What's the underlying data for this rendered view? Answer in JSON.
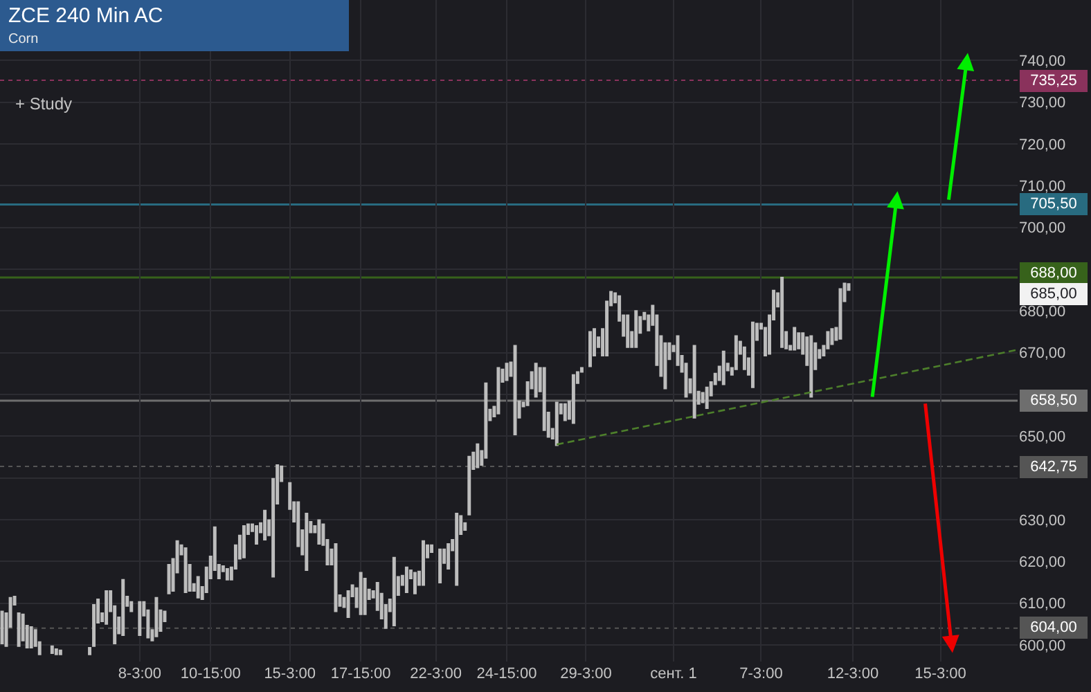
{
  "chart_data": {
    "type": "candlestick",
    "title": "ZCE 240 Min AC",
    "subtitle": "Corn",
    "categories": [
      null,
      null,
      null,
      null,
      null,
      null,
      null,
      null,
      null,
      null,
      null,
      null,
      null,
      null,
      null,
      null,
      null,
      null,
      null,
      null,
      null,
      null,
      null,
      null,
      null,
      null,
      null,
      null,
      null,
      null,
      null,
      null,
      null,
      "8-3:00",
      null,
      null,
      null,
      null,
      null,
      null,
      null,
      null,
      null,
      null,
      null,
      null,
      null,
      null,
      null,
      null,
      "10-15:00",
      null,
      null,
      null,
      null,
      null,
      null,
      null,
      null,
      null,
      null,
      null,
      null,
      null,
      null,
      null,
      null,
      null,
      null,
      "15-3:00",
      null,
      null,
      null,
      null,
      null,
      null,
      null,
      null,
      null,
      null,
      null,
      null,
      null,
      null,
      null,
      null,
      "17-15:00",
      null,
      null,
      null,
      null,
      null,
      null,
      null,
      null,
      null,
      null,
      null,
      null,
      null,
      null,
      null,
      null,
      null,
      "22-3:00",
      null,
      null,
      null,
      null,
      null,
      null,
      null,
      null,
      null,
      null,
      null,
      null,
      null,
      null,
      null,
      null,
      "24-15:00",
      null,
      null,
      null,
      null,
      null,
      null,
      null,
      null,
      null,
      null,
      null,
      null,
      null,
      null,
      null,
      null,
      null,
      null,
      "29-3:00",
      null,
      null,
      null,
      null,
      null,
      null,
      null,
      null,
      null,
      null,
      null,
      null,
      null,
      null,
      null,
      null,
      null,
      null,
      null,
      null,
      "сент. 1",
      null,
      null,
      null,
      null,
      null,
      null,
      null,
      null,
      null,
      null,
      null,
      null,
      null,
      null,
      null,
      null,
      null,
      null,
      null,
      null,
      "7-3:00",
      null,
      null,
      null,
      null,
      null,
      null,
      null,
      null,
      null,
      null,
      null,
      null,
      null,
      null,
      null,
      null,
      null,
      null,
      null,
      null,
      null,
      "12-3:00",
      null,
      null,
      null,
      null,
      null,
      null,
      null,
      null,
      null,
      null,
      null,
      null,
      null,
      null,
      null,
      null,
      null,
      null,
      null,
      null,
      "15-3:00",
      null,
      null,
      null,
      null,
      null,
      null,
      null,
      null,
      null,
      null,
      null,
      null,
      null,
      null,
      null,
      null,
      null,
      null
    ],
    "ohlc": [
      [
        608.0,
        608.0,
        600.3,
        600.3
      ],
      [
        607.6,
        607.6,
        599.7,
        599.7
      ],
      [
        611.3,
        611.3,
        604.3,
        604.3
      ],
      [
        611.6,
        611.6,
        609.6,
        609.6
      ],
      [
        607.6,
        607.6,
        599.7,
        599.7
      ],
      [
        607.3,
        607.3,
        601.0,
        601.0
      ],
      [
        604.6,
        604.6,
        599.3,
        599.3
      ],
      [
        604.3,
        604.3,
        599.3,
        599.3
      ],
      [
        603.6,
        603.6,
        599.7,
        599.7
      ],
      [
        600.7,
        600.7,
        597.7,
        597.7
      ],
      null,
      null,
      [
        599.7,
        599.7,
        598.0,
        598.0
      ],
      [
        599.0,
        599.0,
        597.7,
        597.7
      ],
      [
        598.7,
        598.7,
        597.7,
        597.7
      ],
      null,
      null,
      null,
      null,
      null,
      null,
      [
        599.3,
        599.3,
        597.7,
        597.7
      ],
      [
        609.6,
        609.6,
        599.7,
        599.7
      ],
      [
        610.9,
        610.9,
        605.3,
        605.3
      ],
      [
        605.6,
        607.6,
        605.6,
        607.6
      ],
      [
        612.9,
        612.9,
        605.0,
        605.0
      ],
      [
        612.9,
        612.9,
        608.0,
        608.0
      ],
      [
        609.3,
        609.3,
        600.3,
        600.3
      ],
      [
        606.6,
        606.6,
        602.7,
        602.7
      ],
      [
        615.6,
        615.6,
        602.3,
        602.3
      ],
      [
        611.6,
        611.6,
        609.3,
        609.3
      ],
      [
        610.3,
        610.3,
        608.0,
        608.0
      ],
      null,
      [
        610.3,
        610.3,
        602.3,
        602.3
      ],
      [
        610.3,
        610.3,
        607.0,
        607.0
      ],
      [
        608.3,
        608.3,
        601.7,
        601.7
      ],
      [
        601.0,
        603.6,
        601.0,
        603.6
      ],
      [
        611.3,
        611.3,
        602.0,
        602.0
      ],
      [
        608.3,
        608.3,
        603.3,
        603.3
      ],
      [
        605.6,
        608.0,
        605.6,
        608.0
      ],
      [
        619.2,
        619.2,
        612.3,
        612.3
      ],
      [
        620.6,
        620.6,
        612.9,
        612.9
      ],
      [
        624.9,
        624.9,
        617.3,
        617.3
      ],
      [
        623.9,
        623.9,
        621.6,
        621.6
      ],
      [
        623.2,
        623.2,
        612.6,
        612.6
      ],
      [
        619.2,
        619.2,
        612.9,
        612.9
      ],
      [
        614.6,
        614.6,
        612.9,
        612.9
      ],
      [
        616.3,
        616.3,
        611.3,
        611.3
      ],
      [
        613.9,
        613.9,
        610.9,
        610.9
      ],
      [
        618.6,
        618.6,
        612.6,
        612.6
      ],
      [
        621.2,
        621.2,
        615.9,
        615.9
      ],
      [
        628.2,
        628.2,
        617.9,
        617.9
      ],
      [
        615.9,
        619.2,
        615.9,
        619.2
      ],
      [
        618.9,
        618.9,
        617.6,
        617.6
      ],
      [
        618.2,
        618.2,
        615.6,
        615.6
      ],
      [
        618.6,
        618.6,
        615.6,
        615.6
      ],
      [
        623.9,
        623.9,
        618.2,
        618.2
      ],
      [
        626.2,
        626.2,
        620.6,
        620.6
      ],
      [
        628.5,
        628.5,
        620.9,
        620.9
      ],
      [
        628.9,
        628.9,
        626.5,
        626.5
      ],
      [
        628.9,
        628.9,
        627.2,
        627.2
      ],
      [
        628.5,
        628.5,
        624.2,
        624.2
      ],
      [
        629.2,
        629.2,
        626.9,
        626.9
      ],
      [
        632.2,
        632.2,
        625.2,
        625.2
      ],
      [
        626.2,
        629.9,
        626.2,
        629.9
      ],
      [
        639.8,
        639.8,
        616.3,
        616.3
      ],
      [
        643.1,
        643.1,
        633.8,
        633.8
      ],
      [
        642.8,
        642.8,
        639.2,
        639.2
      ],
      null,
      [
        638.8,
        638.8,
        632.5,
        632.5
      ],
      [
        634.2,
        634.2,
        629.5,
        629.5
      ],
      [
        634.2,
        634.2,
        623.6,
        623.6
      ],
      [
        627.5,
        627.5,
        621.6,
        621.6
      ],
      [
        631.5,
        631.5,
        617.9,
        617.9
      ],
      [
        629.5,
        629.5,
        626.9,
        626.9
      ],
      [
        628.5,
        628.5,
        626.9,
        626.9
      ],
      [
        629.9,
        629.9,
        624.2,
        624.2
      ],
      [
        628.9,
        628.9,
        623.9,
        623.9
      ],
      [
        625.2,
        625.2,
        619.2,
        619.2
      ],
      [
        622.9,
        622.9,
        619.2,
        619.2
      ],
      [
        624.2,
        624.2,
        608.0,
        608.0
      ],
      [
        611.9,
        611.9,
        609.3,
        609.3
      ],
      [
        611.3,
        611.3,
        609.0,
        609.0
      ],
      [
        612.9,
        612.9,
        606.6,
        606.6
      ],
      [
        614.3,
        614.3,
        611.6,
        611.6
      ],
      [
        609.0,
        613.6,
        609.0,
        613.6
      ],
      [
        617.3,
        617.3,
        607.3,
        607.3
      ],
      [
        615.9,
        615.9,
        607.3,
        607.3
      ],
      [
        613.3,
        613.3,
        610.9,
        610.9
      ],
      [
        611.3,
        612.9,
        611.3,
        612.9
      ],
      [
        614.9,
        614.9,
        608.3,
        608.3
      ],
      [
        612.3,
        612.3,
        606.3,
        606.3
      ],
      [
        609.6,
        609.6,
        604.0,
        604.0
      ],
      [
        608.0,
        610.9,
        608.0,
        610.9
      ],
      [
        620.9,
        620.9,
        604.6,
        604.6
      ],
      [
        616.3,
        616.3,
        611.9,
        611.9
      ],
      [
        616.6,
        616.6,
        614.3,
        614.3
      ],
      [
        618.6,
        618.6,
        612.6,
        612.6
      ],
      [
        617.9,
        617.9,
        615.9,
        615.9
      ],
      [
        617.3,
        617.3,
        612.3,
        612.3
      ],
      [
        617.6,
        617.6,
        614.3,
        614.3
      ],
      [
        624.9,
        624.9,
        614.3,
        614.3
      ],
      [
        623.9,
        623.9,
        620.9,
        620.9
      ],
      [
        622.2,
        623.9,
        622.2,
        623.9
      ],
      null,
      [
        622.9,
        622.9,
        614.9,
        614.9
      ],
      [
        622.9,
        622.9,
        619.6,
        619.6
      ],
      [
        624.2,
        624.2,
        618.2,
        618.2
      ],
      [
        625.2,
        625.2,
        622.6,
        622.6
      ],
      [
        631.5,
        631.5,
        614.3,
        614.3
      ],
      [
        630.9,
        630.9,
        626.5,
        626.5
      ],
      [
        629.2,
        629.2,
        627.5,
        627.5
      ],
      [
        645.1,
        645.1,
        631.2,
        631.2
      ],
      [
        646.1,
        646.1,
        642.1,
        642.1
      ],
      [
        648.1,
        648.1,
        642.5,
        642.5
      ],
      [
        646.5,
        646.5,
        643.1,
        643.1
      ],
      [
        662.7,
        662.7,
        644.8,
        644.8
      ],
      [
        656.4,
        656.4,
        653.8,
        653.8
      ],
      [
        657.1,
        657.1,
        654.7,
        654.7
      ],
      [
        666.4,
        666.4,
        655.4,
        655.4
      ],
      [
        666.0,
        666.0,
        663.0,
        663.0
      ],
      [
        667.4,
        667.4,
        663.4,
        663.4
      ],
      [
        667.7,
        667.7,
        664.4,
        664.4
      ],
      [
        671.7,
        671.7,
        650.4,
        650.4
      ],
      [
        658.4,
        658.4,
        654.4,
        654.4
      ],
      [
        658.1,
        658.1,
        657.1,
        657.1
      ],
      [
        663.0,
        663.0,
        657.4,
        657.4
      ],
      [
        665.4,
        665.4,
        661.4,
        661.4
      ],
      [
        667.4,
        667.4,
        659.4,
        659.4
      ],
      [
        666.4,
        666.4,
        660.7,
        660.7
      ],
      [
        666.4,
        666.4,
        651.4,
        651.4
      ],
      [
        655.7,
        655.7,
        649.8,
        649.8
      ],
      [
        651.8,
        651.8,
        649.4,
        649.4
      ],
      [
        658.1,
        658.1,
        647.8,
        647.8
      ],
      [
        655.4,
        657.7,
        655.4,
        657.7
      ],
      [
        657.7,
        657.7,
        653.8,
        653.8
      ],
      [
        658.4,
        658.4,
        654.1,
        654.1
      ],
      [
        664.7,
        664.7,
        653.1,
        653.1
      ],
      [
        665.4,
        665.4,
        662.7,
        662.7
      ],
      [
        666.4,
        666.4,
        665.4,
        665.4
      ],
      null,
      [
        675.0,
        675.0,
        666.7,
        666.7
      ],
      [
        675.7,
        675.7,
        669.3,
        669.3
      ],
      [
        673.7,
        673.7,
        671.3,
        671.3
      ],
      [
        675.7,
        675.7,
        669.3,
        669.3
      ],
      [
        682.3,
        682.3,
        669.3,
        669.3
      ],
      [
        684.6,
        684.6,
        681.3,
        681.3
      ],
      [
        684.3,
        684.3,
        682.0,
        682.0
      ],
      [
        683.6,
        683.6,
        677.6,
        677.6
      ],
      [
        679.0,
        679.0,
        674.0,
        674.0
      ],
      [
        679.0,
        679.0,
        671.3,
        671.3
      ],
      [
        671.3,
        675.0,
        671.3,
        675.0
      ],
      [
        680.0,
        680.0,
        671.3,
        671.3
      ],
      [
        678.6,
        678.6,
        674.7,
        674.7
      ],
      [
        679.6,
        679.6,
        678.0,
        678.0
      ],
      [
        679.0,
        679.0,
        675.3,
        675.3
      ],
      [
        681.3,
        681.3,
        676.6,
        676.6
      ],
      [
        679.0,
        679.0,
        667.0,
        667.0
      ],
      [
        674.0,
        674.0,
        664.4,
        664.4
      ],
      [
        672.3,
        672.3,
        661.4,
        661.4
      ],
      [
        672.3,
        672.3,
        668.4,
        668.4
      ],
      [
        671.7,
        671.7,
        670.3,
        670.3
      ],
      [
        674.0,
        674.0,
        667.0,
        667.0
      ],
      [
        669.3,
        669.3,
        665.4,
        665.4
      ],
      [
        667.4,
        667.4,
        659.4,
        659.4
      ],
      [
        663.7,
        663.7,
        660.4,
        660.4
      ],
      [
        671.7,
        671.7,
        654.4,
        654.4
      ],
      [
        660.7,
        660.7,
        657.7,
        657.7
      ],
      [
        660.4,
        660.4,
        658.1,
        658.1
      ],
      [
        661.7,
        661.7,
        656.7,
        656.7
      ],
      [
        663.0,
        663.0,
        659.7,
        659.7
      ],
      [
        665.0,
        665.0,
        662.4,
        662.4
      ],
      [
        666.7,
        666.7,
        663.4,
        663.4
      ],
      [
        662.4,
        670.3,
        662.4,
        670.3
      ],
      [
        667.4,
        667.4,
        665.7,
        665.7
      ],
      [
        666.4,
        666.4,
        664.7,
        664.7
      ],
      [
        674.0,
        674.0,
        666.0,
        666.0
      ],
      [
        672.7,
        672.7,
        669.7,
        669.7
      ],
      [
        671.3,
        671.3,
        666.0,
        666.0
      ],
      [
        668.7,
        668.7,
        664.7,
        664.7
      ],
      [
        677.3,
        677.3,
        661.7,
        661.7
      ],
      [
        677.0,
        677.0,
        673.0,
        673.0
      ],
      [
        677.0,
        677.0,
        675.7,
        675.7
      ],
      [
        676.0,
        676.0,
        669.3,
        669.3
      ],
      [
        679.0,
        679.0,
        669.7,
        669.7
      ],
      [
        684.9,
        684.9,
        677.9,
        677.9
      ],
      [
        684.3,
        684.3,
        681.0,
        681.0
      ],
      [
        688.0,
        688.0,
        671.3,
        671.3
      ],
      [
        675.0,
        675.0,
        671.0,
        671.0
      ],
      [
        671.7,
        671.7,
        670.7,
        670.7
      ],
      [
        676.0,
        676.0,
        670.7,
        670.7
      ],
      [
        674.7,
        674.7,
        671.0,
        671.0
      ],
      [
        674.7,
        674.7,
        669.7,
        669.7
      ],
      [
        673.7,
        673.7,
        667.0,
        667.0
      ],
      [
        674.0,
        674.0,
        659.4,
        659.4
      ],
      [
        672.3,
        672.3,
        666.0,
        666.0
      ],
      [
        670.7,
        670.7,
        668.7,
        668.7
      ],
      [
        671.7,
        671.7,
        669.3,
        669.3
      ],
      [
        675.0,
        675.0,
        671.0,
        671.0
      ],
      [
        675.7,
        675.7,
        672.0,
        672.0
      ],
      [
        676.0,
        676.0,
        673.0,
        673.0
      ],
      [
        685.3,
        685.3,
        673.3,
        673.3
      ],
      [
        686.6,
        686.6,
        682.3,
        682.3
      ],
      [
        686.5,
        686.5,
        685.0,
        685.0
      ],
      null,
      null,
      null,
      null,
      null,
      null,
      null,
      null,
      null,
      null,
      null,
      null,
      null,
      null,
      null,
      null,
      null,
      null,
      null,
      null,
      null,
      null,
      null,
      null,
      null,
      null,
      null,
      null,
      null,
      null,
      null,
      null,
      null,
      null,
      null,
      null,
      null,
      null,
      null,
      null
    ],
    "color": "#bdbdbd",
    "series": [
      {
        "type": "line",
        "color": "#4d7f2b",
        "line_style": "dashed",
        "values": [
          null,
          null,
          null,
          null,
          null,
          null,
          null,
          null,
          null,
          null,
          null,
          null,
          null,
          null,
          null,
          null,
          null,
          null,
          null,
          null,
          null,
          null,
          null,
          null,
          null,
          null,
          null,
          null,
          null,
          null,
          null,
          null,
          null,
          null,
          null,
          null,
          null,
          null,
          null,
          null,
          null,
          null,
          null,
          null,
          null,
          null,
          null,
          null,
          null,
          null,
          null,
          null,
          null,
          null,
          null,
          null,
          null,
          null,
          null,
          null,
          null,
          null,
          null,
          null,
          null,
          null,
          null,
          null,
          null,
          null,
          null,
          null,
          null,
          null,
          null,
          null,
          null,
          null,
          null,
          null,
          null,
          null,
          null,
          null,
          null,
          null,
          null,
          null,
          null,
          null,
          null,
          null,
          null,
          null,
          null,
          null,
          null,
          null,
          null,
          null,
          null,
          null,
          null,
          null,
          null,
          null,
          null,
          null,
          null,
          null,
          null,
          null,
          null,
          null,
          null,
          null,
          null,
          null,
          null,
          null,
          null,
          null,
          null,
          null,
          null,
          null,
          null,
          null,
          null,
          null,
          null,
          null,
          null,
          648.0,
          null,
          null,
          null,
          null,
          null,
          null,
          null,
          null,
          null,
          null,
          null,
          null,
          null,
          null,
          null,
          null,
          null,
          null,
          null,
          null,
          null,
          null,
          null,
          null,
          null,
          null,
          null,
          null,
          null,
          null,
          null,
          null,
          null,
          null,
          null,
          null,
          null,
          null,
          null,
          null,
          null,
          null,
          null,
          null,
          null,
          null,
          null,
          null,
          null,
          null,
          null,
          null,
          null,
          null,
          null,
          null,
          null,
          null,
          null,
          null,
          null,
          null,
          null,
          null,
          null,
          null,
          null,
          null,
          null,
          null,
          null,
          null,
          null,
          null,
          null,
          null,
          null,
          null,
          null,
          null,
          null,
          null,
          null,
          null,
          null,
          null,
          null,
          null,
          null,
          null,
          null,
          null,
          null,
          null,
          null,
          null,
          null,
          null,
          null,
          null,
          null,
          null,
          null,
          null,
          null,
          null,
          null,
          null,
          null,
          670.6
        ]
      }
    ],
    "ylim": [
      596,
      754.5
    ],
    "yticks": [
      {
        "value": 600,
        "label": "600,00"
      },
      {
        "value": 610,
        "label": "610,00"
      },
      {
        "value": 620,
        "label": "620,00"
      },
      {
        "value": 630,
        "label": "630,00"
      },
      {
        "value": 640,
        "label": null
      },
      {
        "value": 650,
        "label": "650,00"
      },
      {
        "value": 660,
        "label": null
      },
      {
        "value": 670,
        "label": "670,00"
      },
      {
        "value": 680,
        "label": "680,00"
      },
      {
        "value": 690,
        "label": null
      },
      {
        "value": 700,
        "label": "700,00"
      },
      {
        "value": 710,
        "label": "710,00"
      },
      {
        "value": 720,
        "label": "720,00"
      },
      {
        "value": 730,
        "label": "730,00"
      },
      {
        "value": 740,
        "label": "740,00"
      }
    ],
    "ref_lines": [
      {
        "axis": "y",
        "value": 735.25,
        "label": "735,25",
        "color": "#8a325c",
        "line_style": "dotted"
      },
      {
        "axis": "y",
        "value": 705.5,
        "label": "705,50",
        "color": "#286b80",
        "line_style": "solid"
      },
      {
        "axis": "y",
        "value": 688,
        "label": "688,00",
        "color": "#37621b",
        "line_style": "solid"
      },
      {
        "axis": "y",
        "value": 658.5,
        "label": "658,50",
        "color": "#6e6e6e",
        "line_style": "solid"
      },
      {
        "axis": "y",
        "value": 642.75,
        "label": "642,75",
        "color": "#555555",
        "line_style": "dotted"
      },
      {
        "axis": "y",
        "value": 604,
        "label": "604,00",
        "color": "#555555",
        "line_style": "dotted"
      }
    ],
    "annotations": [
      "+ Study",
      "685,00"
    ],
    "grid": true
  }
}
